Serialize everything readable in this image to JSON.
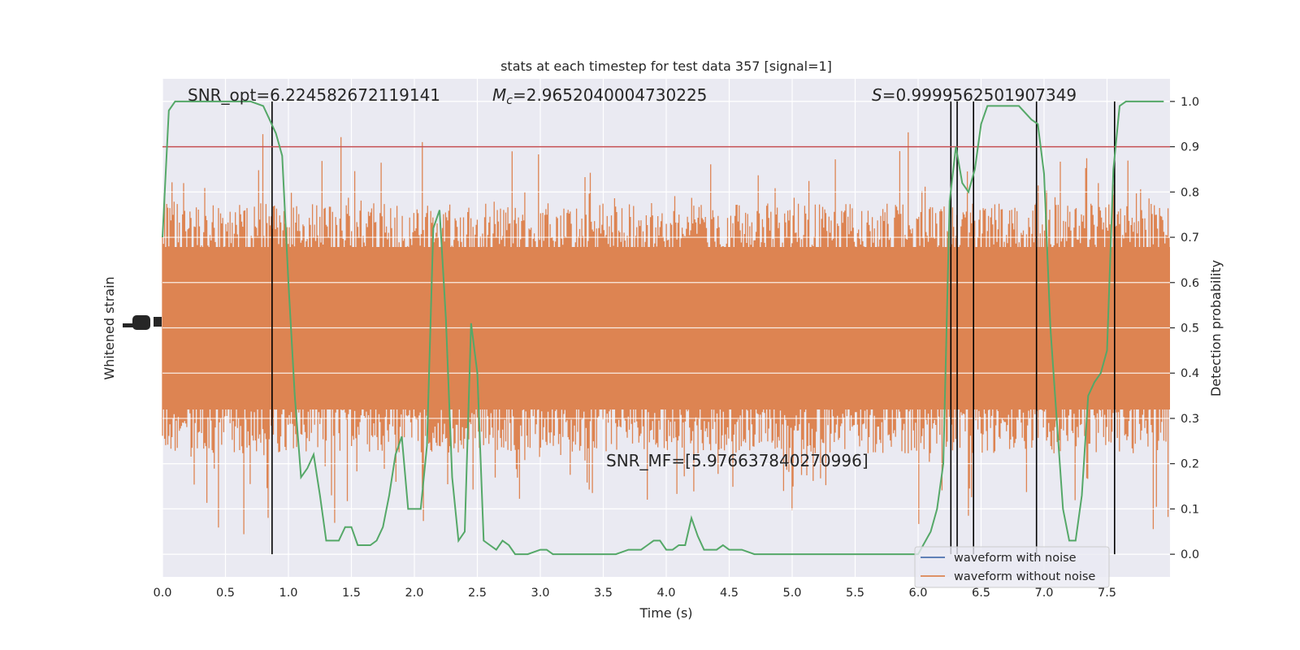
{
  "chart_data": {
    "type": "line",
    "title": "stats at each timestep for test data 357 [signal=1]",
    "xlabel": "Time (s)",
    "ylabel_left": "Whitened strain",
    "ylabel_right": "Detection probability",
    "xlim": [
      0.0,
      8.0
    ],
    "ylim_right": [
      -0.05,
      1.05
    ],
    "x_ticks": [
      "0.0",
      "0.5",
      "1.0",
      "1.5",
      "2.0",
      "2.5",
      "3.0",
      "3.5",
      "4.0",
      "4.5",
      "5.0",
      "5.5",
      "6.0",
      "6.5",
      "7.0",
      "7.5"
    ],
    "x_tick_values": [
      0.0,
      0.5,
      1.0,
      1.5,
      2.0,
      2.5,
      3.0,
      3.5,
      4.0,
      4.5,
      5.0,
      5.5,
      6.0,
      6.5,
      7.0,
      7.5
    ],
    "y_right_ticks": [
      "0.0",
      "0.1",
      "0.2",
      "0.3",
      "0.4",
      "0.5",
      "0.6",
      "0.7",
      "0.8",
      "0.9",
      "1.0"
    ],
    "y_right_tick_values": [
      0.0,
      0.1,
      0.2,
      0.3,
      0.4,
      0.5,
      0.6,
      0.7,
      0.8,
      0.9,
      1.0
    ],
    "threshold": 0.9,
    "threshold_color": "#c44e52",
    "annotations": {
      "snr_opt": "SNR_opt=6.224582672119141",
      "mc_value": "=2.9652040004730225",
      "s_value": "=0.9999562501907349",
      "snr_mf": "SNR_MF=[5.976637840270996]"
    },
    "trigger_times": [
      0.87,
      6.26,
      6.31,
      6.44,
      6.94,
      7.56
    ],
    "detection_probability": {
      "name": "",
      "color": "#55a868",
      "x": [
        0.0,
        0.05,
        0.1,
        0.2,
        0.3,
        0.4,
        0.5,
        0.6,
        0.7,
        0.8,
        0.85,
        0.9,
        0.95,
        1.0,
        1.05,
        1.1,
        1.15,
        1.2,
        1.25,
        1.3,
        1.35,
        1.4,
        1.45,
        1.5,
        1.55,
        1.6,
        1.65,
        1.7,
        1.75,
        1.8,
        1.85,
        1.9,
        1.95,
        2.0,
        2.05,
        2.1,
        2.15,
        2.2,
        2.25,
        2.3,
        2.35,
        2.4,
        2.45,
        2.5,
        2.55,
        2.6,
        2.65,
        2.7,
        2.75,
        2.8,
        2.9,
        3.0,
        3.05,
        3.1,
        3.2,
        3.3,
        3.4,
        3.5,
        3.6,
        3.7,
        3.75,
        3.8,
        3.85,
        3.9,
        3.95,
        4.0,
        4.05,
        4.1,
        4.15,
        4.2,
        4.25,
        4.3,
        4.35,
        4.4,
        4.45,
        4.5,
        4.55,
        4.6,
        4.7,
        4.8,
        5.0,
        5.5,
        6.0,
        6.1,
        6.15,
        6.2,
        6.25,
        6.3,
        6.35,
        6.4,
        6.45,
        6.5,
        6.55,
        6.6,
        6.7,
        6.8,
        6.9,
        6.95,
        7.0,
        7.05,
        7.1,
        7.15,
        7.2,
        7.25,
        7.3,
        7.35,
        7.4,
        7.45,
        7.5,
        7.55,
        7.6,
        7.65,
        7.7,
        7.8,
        7.95
      ],
      "y": [
        0.7,
        0.98,
        1.0,
        1.0,
        1.0,
        1.0,
        1.0,
        1.0,
        1.0,
        0.99,
        0.96,
        0.93,
        0.88,
        0.6,
        0.35,
        0.17,
        0.19,
        0.22,
        0.13,
        0.03,
        0.03,
        0.03,
        0.06,
        0.06,
        0.02,
        0.02,
        0.02,
        0.03,
        0.06,
        0.13,
        0.22,
        0.26,
        0.1,
        0.1,
        0.1,
        0.24,
        0.72,
        0.76,
        0.52,
        0.17,
        0.03,
        0.05,
        0.51,
        0.4,
        0.03,
        0.02,
        0.01,
        0.03,
        0.02,
        0.0,
        0.0,
        0.01,
        0.01,
        0.0,
        0.0,
        0.0,
        0.0,
        0.0,
        0.0,
        0.01,
        0.01,
        0.01,
        0.02,
        0.03,
        0.03,
        0.01,
        0.01,
        0.02,
        0.02,
        0.08,
        0.04,
        0.01,
        0.01,
        0.01,
        0.02,
        0.01,
        0.01,
        0.01,
        0.0,
        0.0,
        0.0,
        0.0,
        0.0,
        0.05,
        0.1,
        0.2,
        0.78,
        0.9,
        0.82,
        0.8,
        0.85,
        0.95,
        0.99,
        0.99,
        0.99,
        0.99,
        0.96,
        0.95,
        0.84,
        0.5,
        0.3,
        0.1,
        0.03,
        0.03,
        0.13,
        0.35,
        0.38,
        0.4,
        0.45,
        0.85,
        0.99,
        1.0,
        1.0,
        1.0,
        1.0
      ]
    },
    "legend": {
      "placement": "lower right",
      "entries": [
        {
          "label": "waveform with noise",
          "color": "#4c72b0"
        },
        {
          "label": "waveform without noise",
          "color": "#dd8452"
        }
      ]
    },
    "colors": {
      "plot_background": "#eaeaf2",
      "grid": "#ffffff",
      "strain": "#dd8452",
      "trigger_lines": "#000000"
    }
  }
}
